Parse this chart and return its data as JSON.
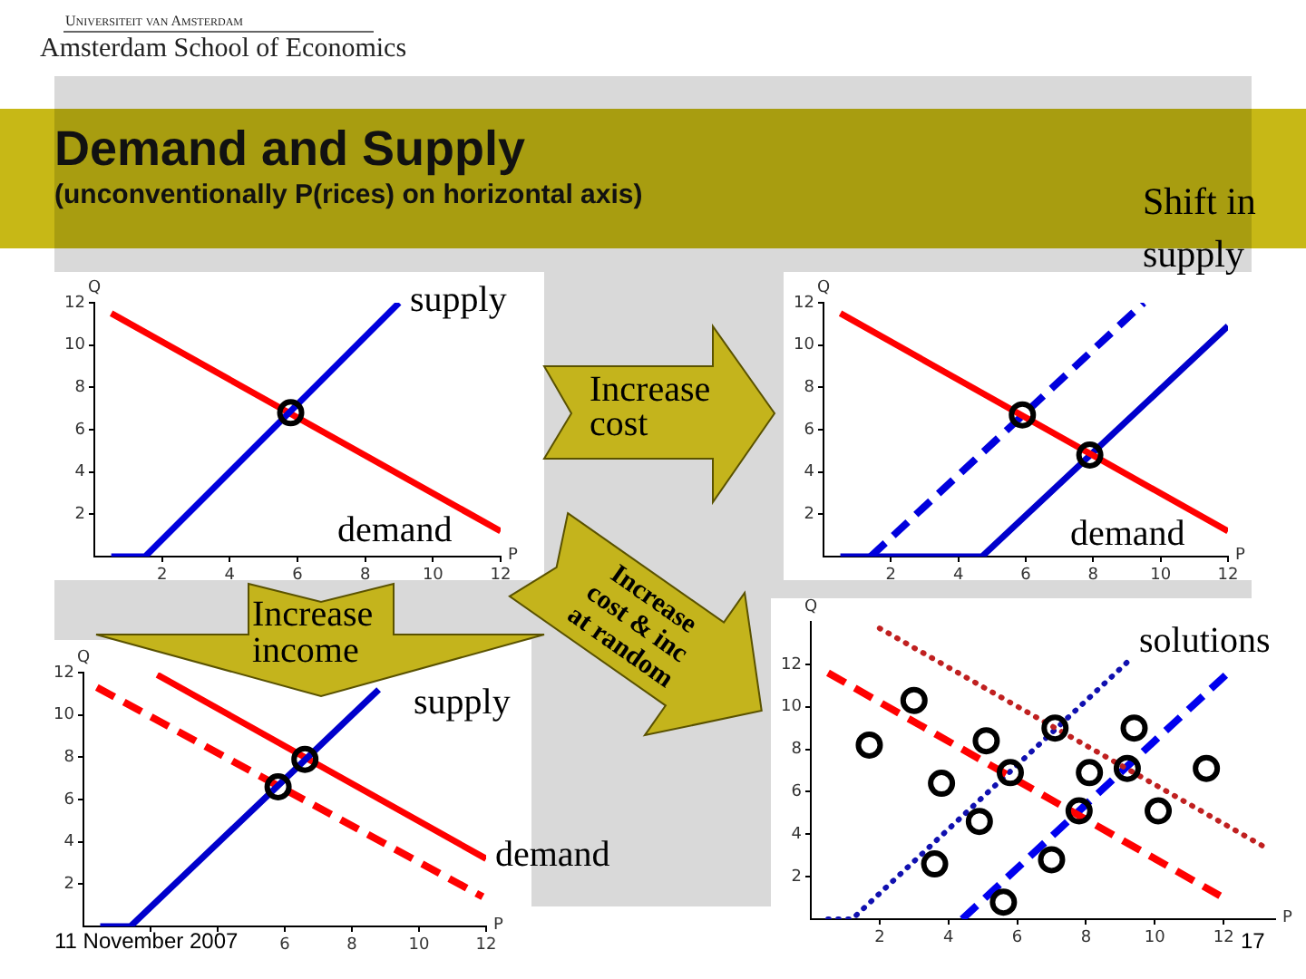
{
  "chart_data": [
    {
      "type": "other",
      "title": "Demand and Supply",
      "subtitle": "(unconventionally P(rices) on horizontal axis)",
      "annotations": [
        "Universiteit van Amsterdam",
        "Amsterdam School of Economics",
        "Increase cost",
        "Increase cost & inc at random",
        "Increase income",
        "11 November 2007",
        "17"
      ]
    },
    {
      "type": "line",
      "xlabel": "P",
      "ylabel": "Q",
      "xlim": [
        0,
        12
      ],
      "ylim": [
        0,
        12
      ],
      "xticks": [
        2,
        4,
        6,
        8,
        10,
        12
      ],
      "yticks": [
        2,
        4,
        6,
        8,
        10,
        12
      ],
      "series": [
        {
          "name": "supply",
          "color": "#0000dd",
          "line_style": "solid",
          "x": [
            0.5,
            1.5,
            9
          ],
          "values": [
            0,
            0,
            12
          ]
        },
        {
          "name": "demand",
          "color": "#ff0000",
          "line_style": "solid",
          "x": [
            0.5,
            12
          ],
          "values": [
            11.5,
            1.2
          ]
        },
        {
          "type": "scatter",
          "color": "#000000",
          "marker": "circle",
          "x": [
            5.8
          ],
          "values": [
            6.8
          ]
        }
      ]
    },
    {
      "type": "line",
      "title": "Shift in supply",
      "xlabel": "P",
      "ylabel": "Q",
      "xlim": [
        0,
        12
      ],
      "ylim": [
        0,
        12
      ],
      "xticks": [
        2,
        4,
        6,
        8,
        10,
        12
      ],
      "yticks": [
        2,
        4,
        6,
        8,
        10,
        12
      ],
      "series": [
        {
          "name": "demand",
          "color": "#ff0000",
          "line_style": "solid",
          "x": [
            0.5,
            12
          ],
          "values": [
            11.5,
            1.2
          ]
        },
        {
          "color": "#0000dd",
          "line_style": "dashed",
          "x": [
            1.4,
            9.5
          ],
          "values": [
            0,
            12
          ]
        },
        {
          "color": "#0000cc",
          "line_style": "solid",
          "x": [
            0.5,
            4.7,
            12
          ],
          "values": [
            0,
            0,
            10.9
          ]
        },
        {
          "type": "scatter",
          "color": "#000000",
          "marker": "circle",
          "x": [
            5.9,
            7.9
          ],
          "values": [
            6.7,
            4.8
          ]
        }
      ]
    },
    {
      "type": "line",
      "xlabel": "P",
      "ylabel": "Q",
      "xlim": [
        0,
        12
      ],
      "ylim": [
        0,
        12
      ],
      "xticks": [
        {
          "value": 2,
          "label": null
        },
        {
          "value": 4,
          "label": null
        },
        6,
        8,
        10,
        12
      ],
      "yticks": [
        2,
        4,
        6,
        8,
        10,
        12
      ],
      "series": [
        {
          "name": "supply",
          "color": "#0000cc",
          "line_style": "solid",
          "x": [
            0.5,
            1.4,
            8.8
          ],
          "values": [
            0,
            0,
            11.2
          ]
        },
        {
          "name": "demand",
          "color": "#ff0000",
          "line_style": "solid",
          "x": [
            2.2,
            12
          ],
          "values": [
            11.9,
            3.2
          ]
        },
        {
          "color": "#ff0000",
          "line_style": "dashed",
          "x": [
            0.4,
            11.9
          ],
          "values": [
            11.3,
            1.4
          ]
        },
        {
          "type": "scatter",
          "color": "#000000",
          "marker": "circle",
          "x": [
            6.6,
            5.8
          ],
          "values": [
            7.9,
            6.6
          ]
        }
      ]
    },
    {
      "type": "line",
      "xlabel": "P",
      "ylabel": "Q",
      "xlim": [
        0,
        13.5
      ],
      "ylim": [
        0,
        14
      ],
      "xticks": [
        2,
        4,
        6,
        8,
        10,
        12
      ],
      "yticks": [
        2,
        4,
        6,
        8,
        10,
        12
      ],
      "series": [
        {
          "color": "#c02020",
          "line_style": "dotted",
          "x": [
            2,
            13.3
          ],
          "values": [
            13.7,
            3.3
          ]
        },
        {
          "color": "#ff0000",
          "line_style": "dashed",
          "x": [
            0.5,
            11.9
          ],
          "values": [
            11.6,
            1.1
          ]
        },
        {
          "color": "#1010b0",
          "line_style": "dotted",
          "x": [
            0.5,
            1.2,
            9.2
          ],
          "values": [
            0,
            0,
            12.1
          ]
        },
        {
          "color": "#0000ee",
          "line_style": "dashed",
          "x": [
            4.4,
            12.2
          ],
          "values": [
            0,
            11.7
          ]
        },
        {
          "type": "scatter",
          "name": "solutions",
          "color": "#000000",
          "marker": "circle",
          "x": [
            1.7,
            3.0,
            3.8,
            3.6,
            5.1,
            4.9,
            5.8,
            5.6,
            7.1,
            7.0,
            8.1,
            7.8,
            9.4,
            9.2,
            10.1,
            11.5
          ],
          "values": [
            8.2,
            10.3,
            6.4,
            2.6,
            8.4,
            4.6,
            6.9,
            0.8,
            9.0,
            2.8,
            6.9,
            5.1,
            9.0,
            7.1,
            5.1,
            7.1
          ]
        }
      ]
    }
  ]
}
